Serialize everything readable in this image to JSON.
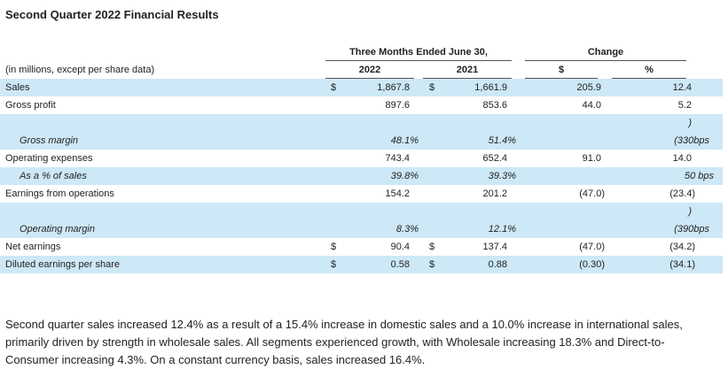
{
  "title": "Second Quarter 2022 Financial Results",
  "table": {
    "period_header": "Three Months Ended June 30,",
    "change_header": "Change",
    "units_note": "(in millions, except per share data)",
    "col_2022": "2022",
    "col_2021": "2021",
    "col_dollar": "$",
    "col_pct": "%",
    "rows": [
      {
        "label": "Sales",
        "cur_2022": "$",
        "v2022": "1,867.8",
        "cur_2021": "$",
        "v2021": "1,661.9",
        "chg": "205.9",
        "pct": "12.4"
      },
      {
        "label": "Gross profit",
        "cur_2022": "",
        "v2022": "897.6",
        "cur_2021": "",
        "v2021": "853.6",
        "chg": "44.0",
        "pct": "5.2"
      },
      {
        "label": "Gross margin",
        "cur_2022": "",
        "v2022": "48.1%",
        "cur_2021": "",
        "v2021": "51.4%",
        "chg": "",
        "pct_top": ")",
        "pct": "(330bps"
      },
      {
        "label": "Operating expenses",
        "cur_2022": "",
        "v2022": "743.4",
        "cur_2021": "",
        "v2021": "652.4",
        "chg": "91.0",
        "pct": "14.0"
      },
      {
        "label": "As a % of sales",
        "cur_2022": "",
        "v2022": "39.8%",
        "cur_2021": "",
        "v2021": "39.3%",
        "chg": "",
        "pct": "50 bps"
      },
      {
        "label": "Earnings from operations",
        "cur_2022": "",
        "v2022": "154.2",
        "cur_2021": "",
        "v2021": "201.2",
        "chg": "(47.0)",
        "pct": "(23.4)"
      },
      {
        "label": "Operating margin",
        "cur_2022": "",
        "v2022": "8.3%",
        "cur_2021": "",
        "v2021": "12.1%",
        "chg": "",
        "pct_top": ")",
        "pct": "(390bps"
      },
      {
        "label": "Net earnings",
        "cur_2022": "$",
        "v2022": "90.4",
        "cur_2021": "$",
        "v2021": "137.4",
        "chg": "(47.0)",
        "pct": "(34.2)"
      },
      {
        "label": "Diluted earnings per share",
        "cur_2022": "$",
        "v2022": "0.58",
        "cur_2021": "$",
        "v2021": "0.88",
        "chg": "(0.30)",
        "pct": "(34.1)"
      }
    ]
  },
  "paragraph": "Second quarter sales increased 12.4% as a result of a 15.4% increase in domestic sales and a 10.0% increase in international sales, primarily driven by strength in wholesale sales. All segments experienced growth, with Wholesale increasing 18.3% and Direct-to-Consumer increasing 4.3%. On a constant currency basis, sales increased 16.4%."
}
